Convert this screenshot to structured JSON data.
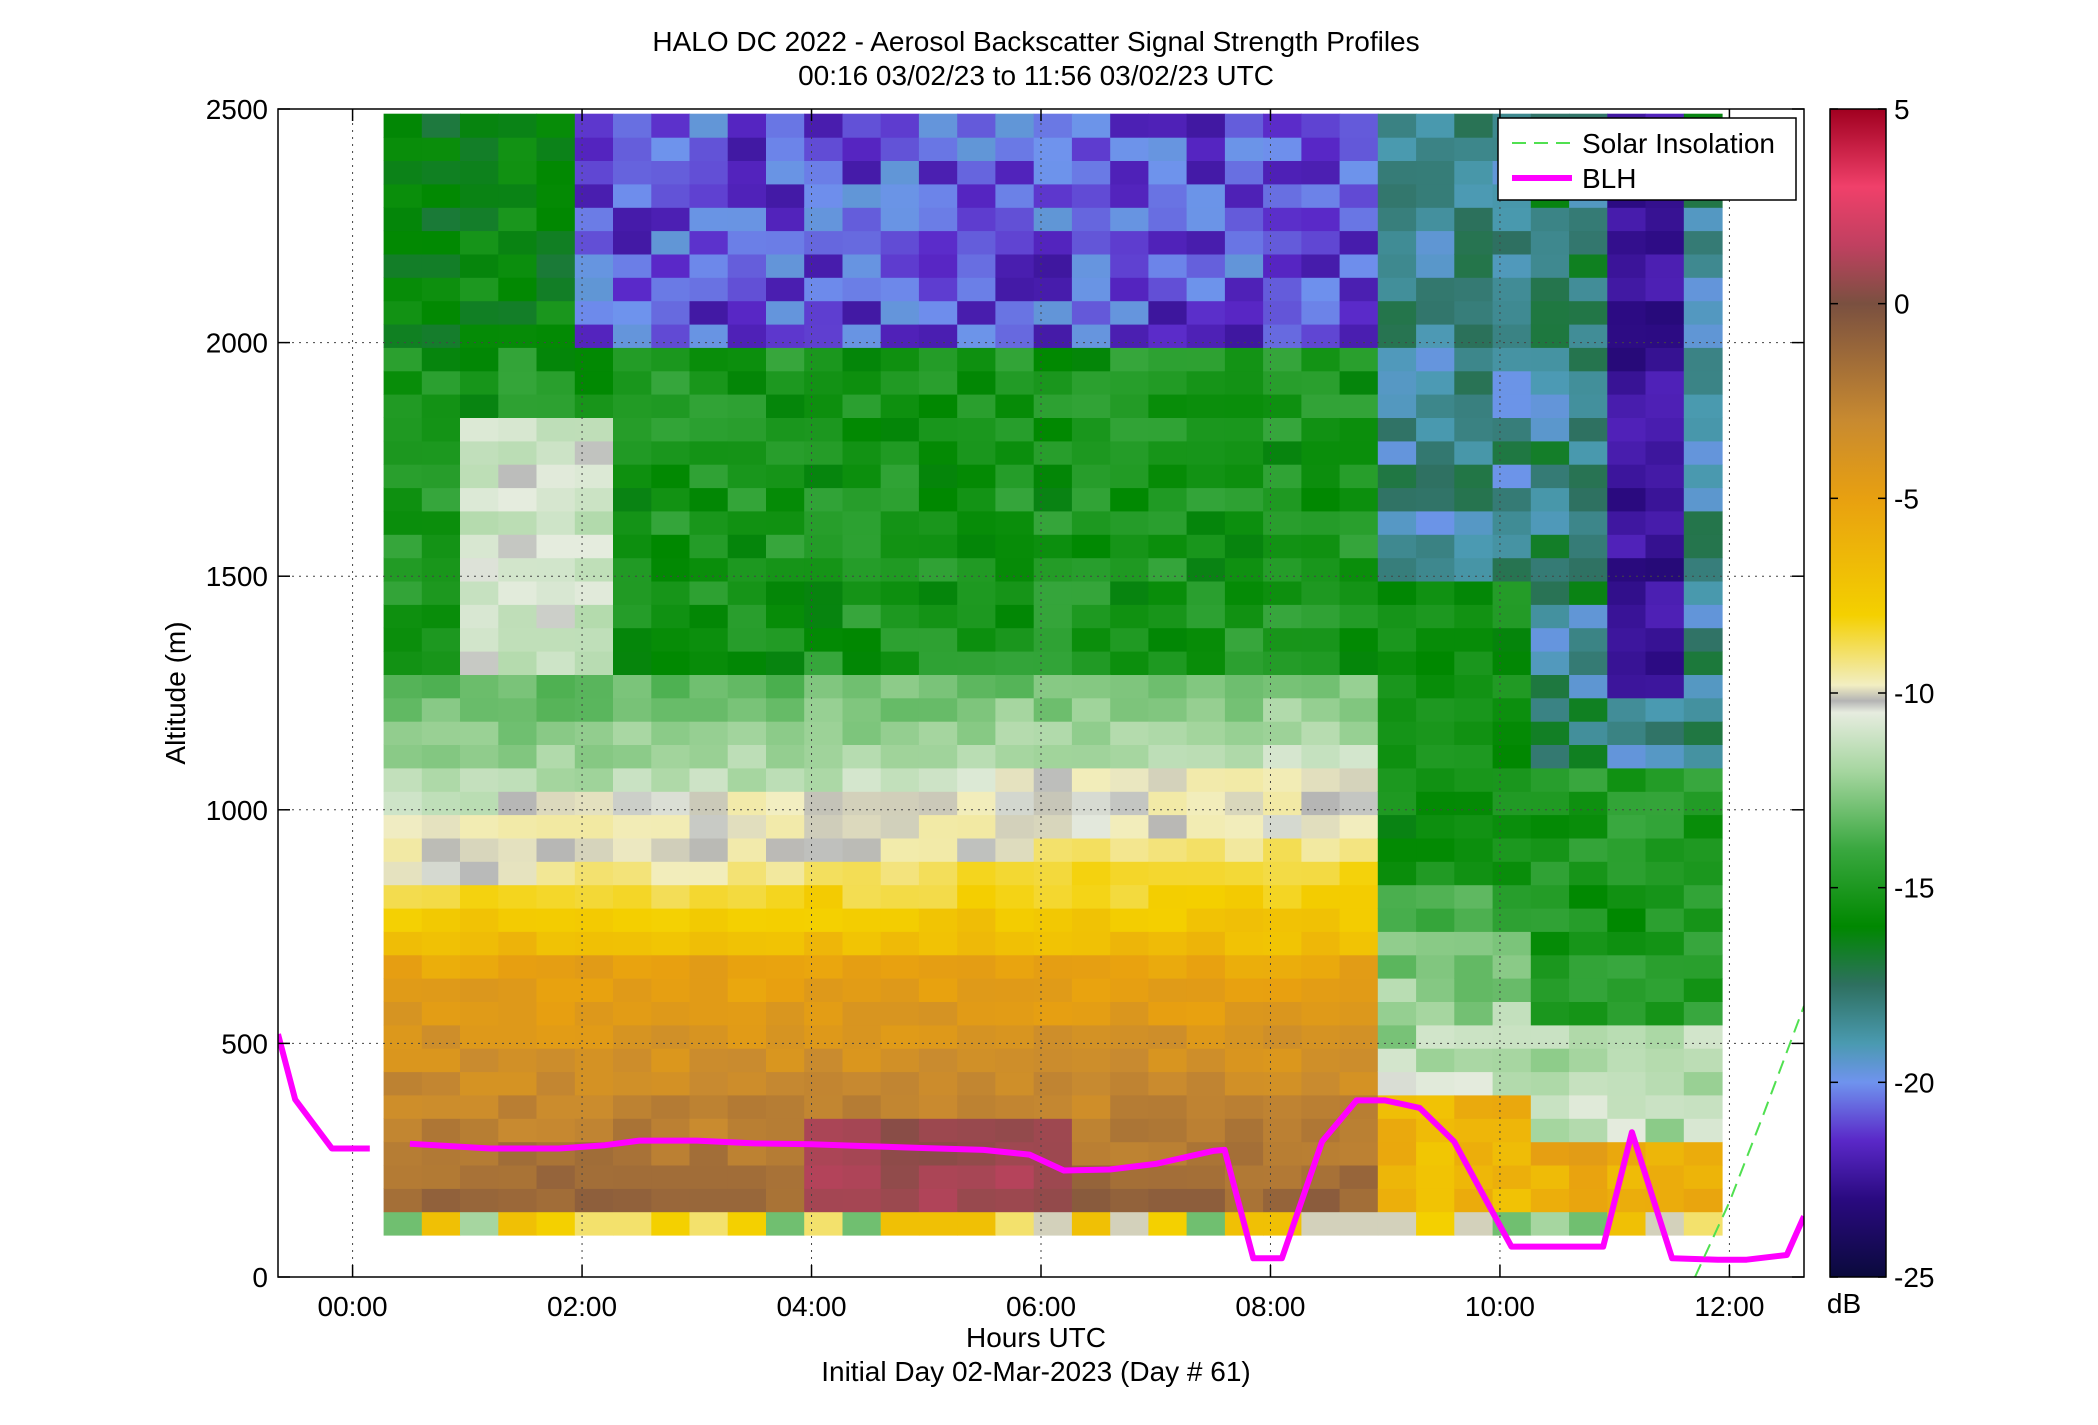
{
  "chart_data": {
    "type": "heatmap",
    "title": "HALO DC 2022 - Aerosol Backscatter Signal Strength Profiles",
    "subtitle": "00:16 03/02/23 to 11:56 03/02/23  UTC",
    "xlabel": "Hours UTC",
    "xlabel2": "Initial Day 02-Mar-2023 (Day # 61)",
    "ylabel": "Altitude (m)",
    "xlim": [
      -0.65,
      12.65
    ],
    "ylim": [
      0,
      2500
    ],
    "x_ticks": [
      0,
      2,
      4,
      6,
      8,
      10,
      12
    ],
    "x_tick_labels": [
      "00:00",
      "02:00",
      "04:00",
      "06:00",
      "08:00",
      "10:00",
      "12:00"
    ],
    "y_ticks": [
      0,
      500,
      1000,
      1500,
      2000,
      2500
    ],
    "y_tick_labels": [
      "0",
      "500",
      "1000",
      "1500",
      "2000",
      "2500"
    ],
    "grid": "dotted",
    "colorbar": {
      "label": "dB",
      "range": [
        -25,
        5
      ],
      "ticks": [
        5,
        0,
        -5,
        -10,
        -15,
        -20,
        -25
      ],
      "tick_labels": [
        "5",
        "0",
        "-5",
        "-10",
        "-15",
        "-20",
        "-25"
      ],
      "stops": [
        {
          "v": -25,
          "c": "#0a0a3c"
        },
        {
          "v": -23,
          "c": "#2a0a80"
        },
        {
          "v": -21.5,
          "c": "#5a28c8"
        },
        {
          "v": -20,
          "c": "#6f93ee"
        },
        {
          "v": -19,
          "c": "#4a9ab0"
        },
        {
          "v": -17.5,
          "c": "#2e7060"
        },
        {
          "v": -16,
          "c": "#008800"
        },
        {
          "v": -14,
          "c": "#3aa840"
        },
        {
          "v": -12,
          "c": "#a6d6a0"
        },
        {
          "v": -10.5,
          "c": "#e6ecdf"
        },
        {
          "v": -10.2,
          "c": "#b4b4b4"
        },
        {
          "v": -9.8,
          "c": "#f2eec2"
        },
        {
          "v": -8,
          "c": "#f4d000"
        },
        {
          "v": -5,
          "c": "#e8a010"
        },
        {
          "v": -3,
          "c": "#c88a30"
        },
        {
          "v": 0,
          "c": "#7a5040"
        },
        {
          "v": 1.5,
          "c": "#c04060"
        },
        {
          "v": 3,
          "c": "#f0406a"
        },
        {
          "v": 5,
          "c": "#a00020"
        }
      ]
    },
    "heatmap_grid": {
      "time_start": 0.27,
      "time_step": 0.3333,
      "altitude_bottom": 90,
      "altitude_step": 50,
      "values_dB": "rows=cols, each row bottom-to-top in 50 m bins from 90 m; generated approximately from the figure's color regions"
    },
    "series": [
      {
        "name": "BLH",
        "color": "#ff00ff",
        "segments": [
          [
            [
              -0.65,
              520
            ],
            [
              -0.5,
              380
            ],
            [
              -0.18,
              275
            ],
            [
              0.15,
              275
            ]
          ],
          [
            [
              0.5,
              285
            ],
            [
              1.2,
              275
            ],
            [
              1.8,
              275
            ],
            [
              2.2,
              282
            ],
            [
              2.5,
              292
            ],
            [
              3.0,
              292
            ],
            [
              3.5,
              286
            ],
            [
              4.0,
              284
            ],
            [
              4.5,
              280
            ],
            [
              5.0,
              276
            ],
            [
              5.5,
              272
            ],
            [
              5.9,
              262
            ],
            [
              6.2,
              228
            ],
            [
              6.6,
              230
            ],
            [
              7.0,
              242
            ],
            [
              7.5,
              270
            ],
            [
              7.6,
              272
            ],
            [
              7.85,
              40
            ],
            [
              8.1,
              40
            ],
            [
              8.45,
              290
            ],
            [
              8.75,
              378
            ],
            [
              9.0,
              378
            ],
            [
              9.3,
              362
            ],
            [
              9.6,
              290
            ],
            [
              9.8,
              200
            ],
            [
              10.1,
              65
            ],
            [
              10.9,
              65
            ],
            [
              11.15,
              310
            ],
            [
              11.5,
              40
            ],
            [
              11.9,
              37
            ],
            [
              12.15,
              37
            ],
            [
              12.5,
              47
            ],
            [
              12.65,
              130
            ]
          ]
        ]
      },
      {
        "name": "Solar Insolation",
        "color": "#50e050",
        "dash": true,
        "points": [
          [
            11.7,
            0
          ],
          [
            12.0,
            160
          ],
          [
            12.3,
            350
          ],
          [
            12.65,
            580
          ]
        ]
      }
    ],
    "legend": {
      "placement": "top-right",
      "entries": [
        "Solar Insolation",
        "BLH"
      ]
    }
  }
}
